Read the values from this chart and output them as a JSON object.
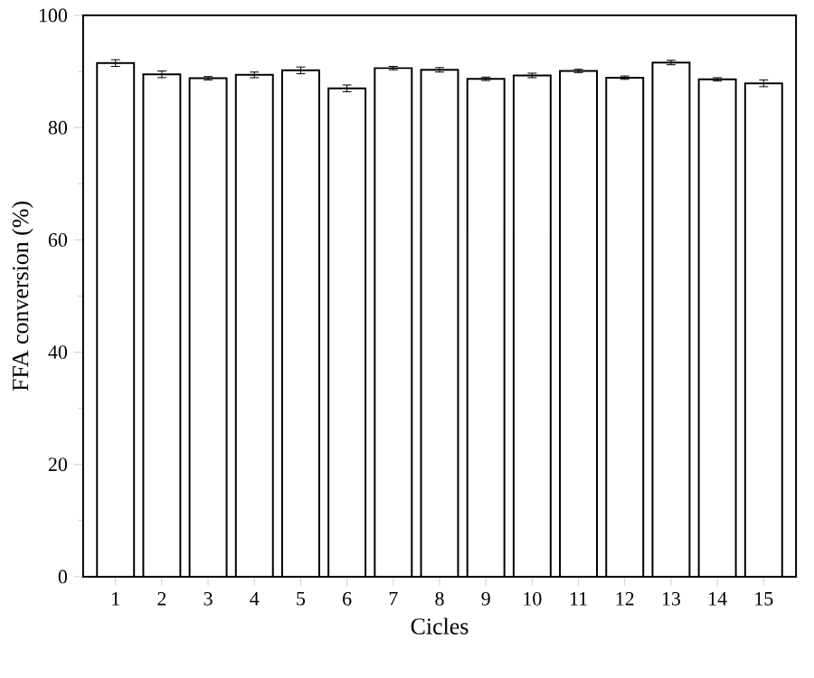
{
  "chart_data": {
    "type": "bar",
    "xlabel": "Cicles",
    "ylabel": "FFA conversion (%)",
    "categories": [
      "1",
      "2",
      "3",
      "4",
      "5",
      "6",
      "7",
      "8",
      "9",
      "10",
      "11",
      "12",
      "13",
      "14",
      "15"
    ],
    "values": [
      91.5,
      89.5,
      88.8,
      89.4,
      90.2,
      87.0,
      90.6,
      90.3,
      88.7,
      89.3,
      90.1,
      88.9,
      91.6,
      88.6,
      87.9
    ],
    "errors": [
      0.6,
      0.6,
      0.3,
      0.5,
      0.6,
      0.6,
      0.3,
      0.4,
      0.3,
      0.4,
      0.3,
      0.3,
      0.4,
      0.3,
      0.6
    ],
    "color": "#ffffff",
    "ylim": [
      0,
      100
    ],
    "yticks": [
      0,
      20,
      40,
      60,
      80,
      100
    ],
    "grid": false
  }
}
